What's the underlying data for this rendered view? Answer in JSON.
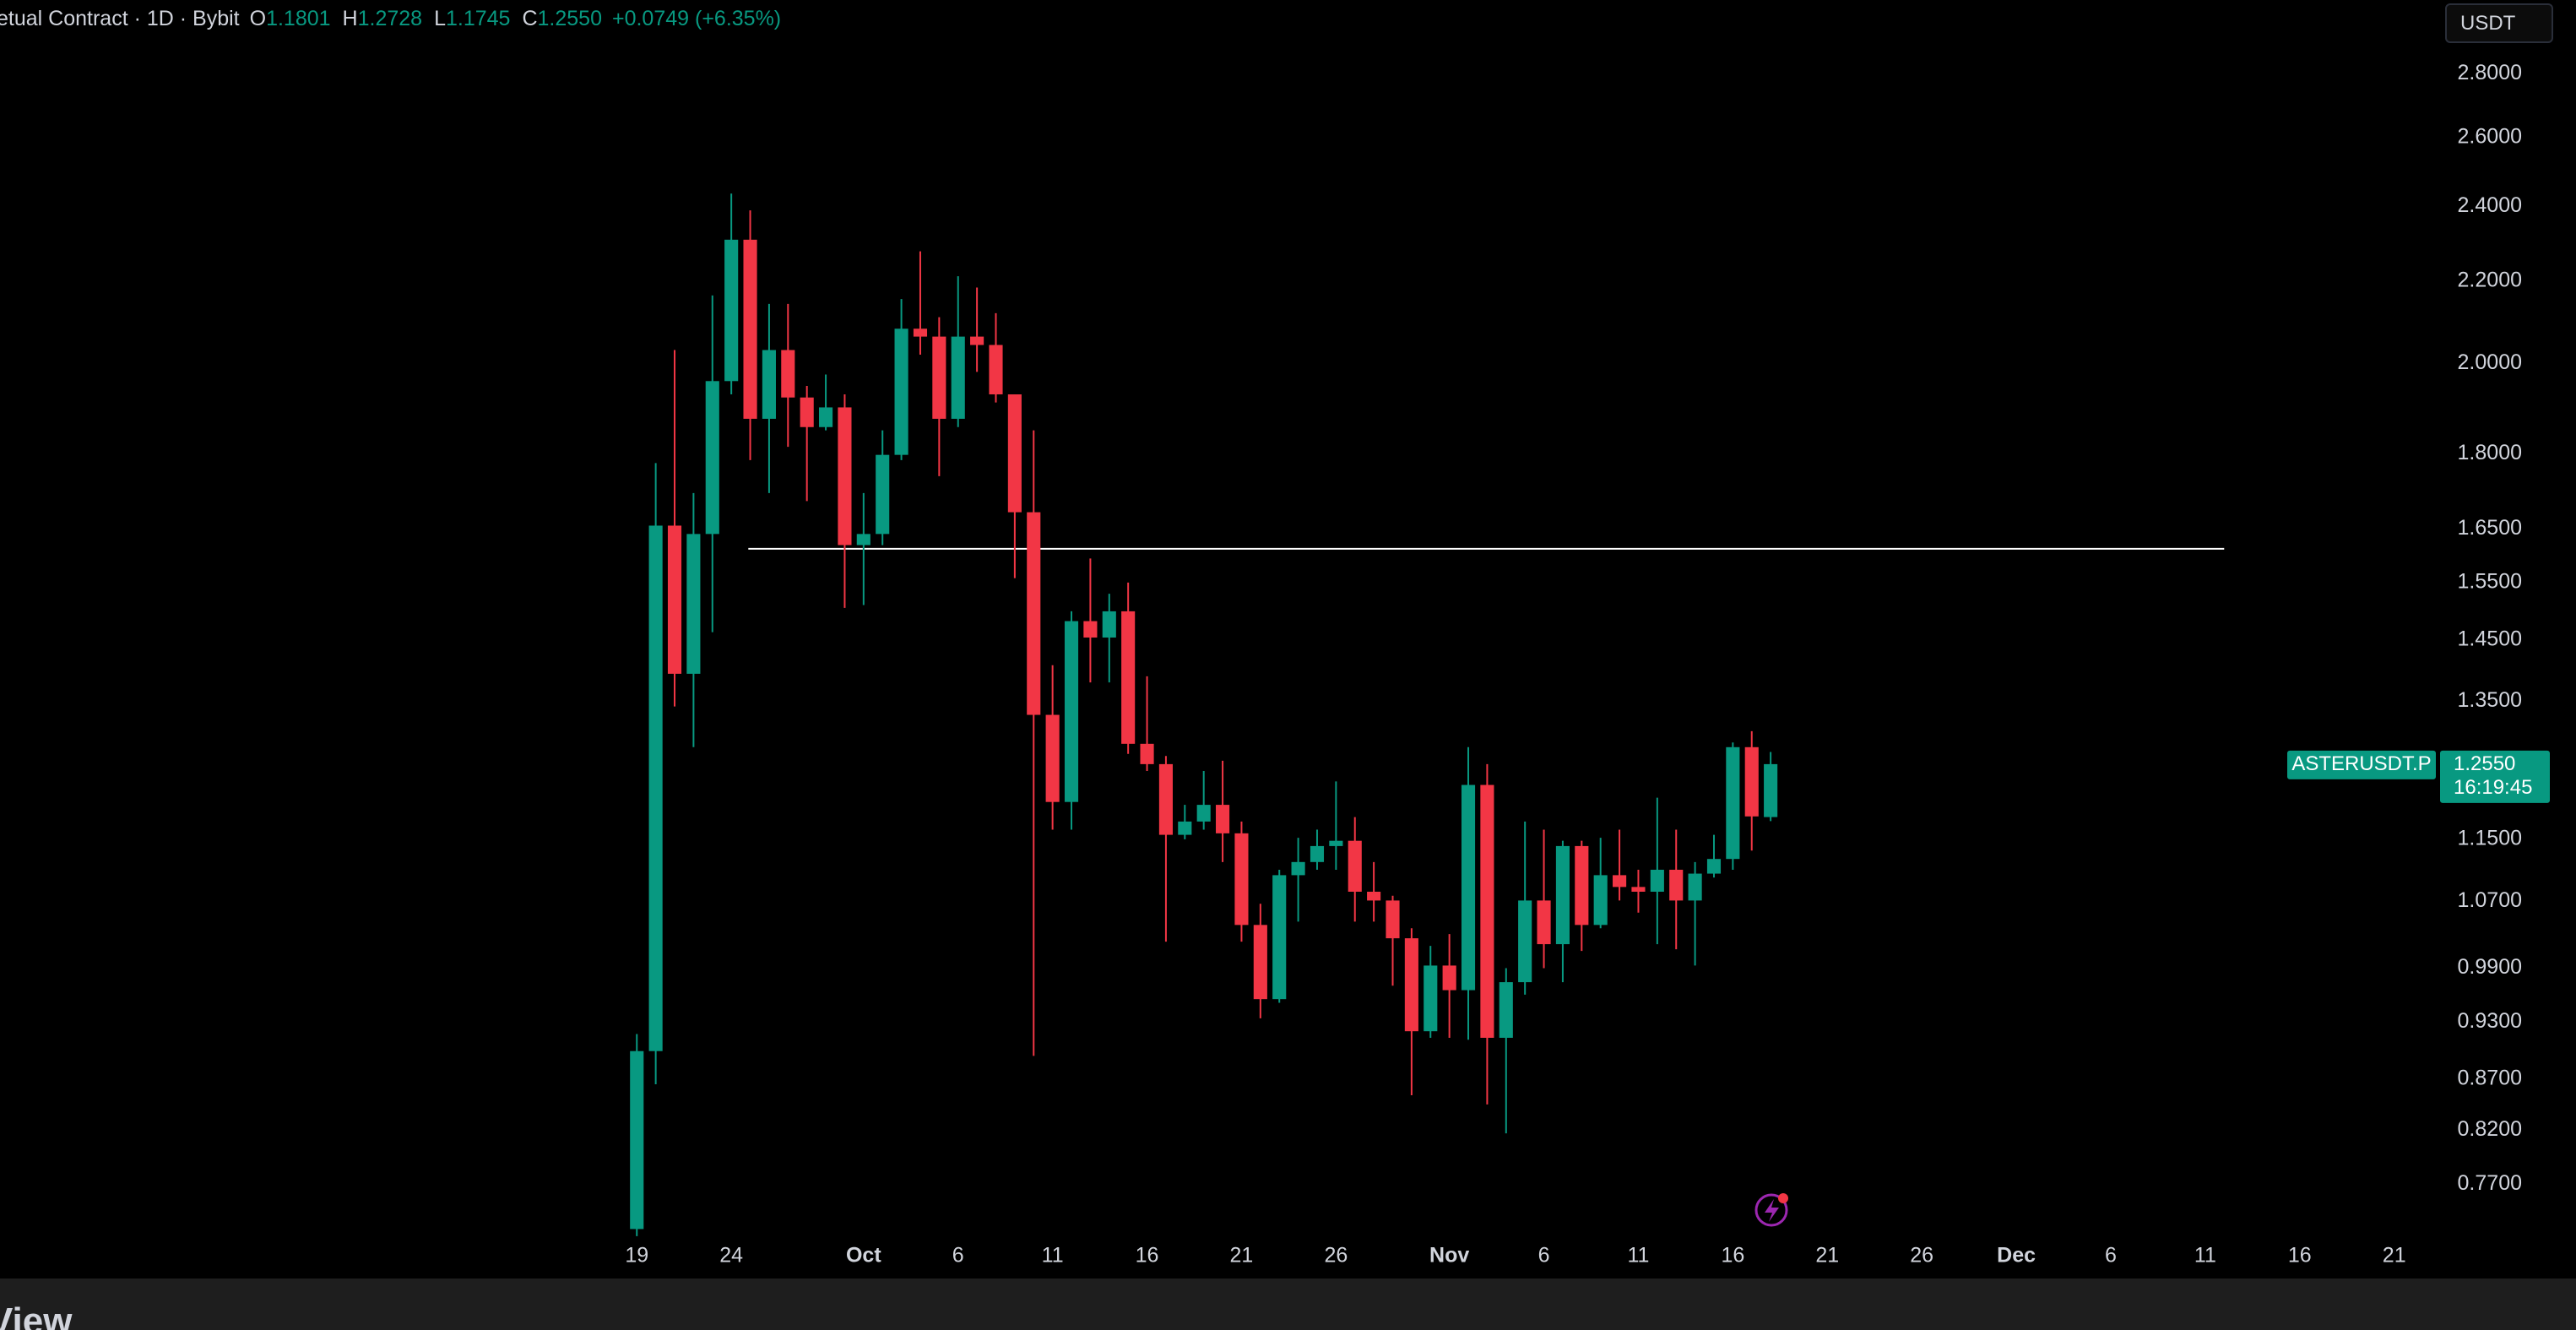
{
  "toolbar": {
    "currency": "USDT"
  },
  "footer": {
    "brand": "View"
  },
  "chart_data": {
    "type": "candlestick",
    "symbol": "ASTERUSDT.P",
    "legend": {
      "title": "etual Contract · 1D · Bybit",
      "items": [
        {
          "key": "O",
          "value": "1.1801"
        },
        {
          "key": "H",
          "value": "1.2728"
        },
        {
          "key": "L",
          "value": "1.1745"
        },
        {
          "key": "C",
          "value": "1.2550"
        }
      ],
      "change": "+0.0749 (+6.35%)"
    },
    "last_price": {
      "label": "1.2550",
      "countdown": "16:19:45"
    },
    "up_color": "#089981",
    "down_color": "#f23645",
    "log_scale": true,
    "grid": false,
    "x": [
      0,
      1,
      2,
      3,
      4,
      5,
      6,
      7,
      8,
      9,
      10,
      11,
      12,
      13,
      14,
      15,
      16,
      17,
      18,
      19,
      20,
      21,
      22,
      23,
      24,
      25,
      26,
      27,
      28,
      29,
      30,
      31,
      32,
      33,
      34,
      35,
      36,
      37,
      38,
      39,
      40,
      41,
      42,
      43,
      44,
      45,
      46,
      47,
      48,
      49,
      50,
      51,
      52,
      53,
      54,
      55,
      56,
      57,
      58,
      59,
      60
    ],
    "open": [
      0.731,
      0.899,
      1.656,
      1.394,
      1.64,
      1.959,
      2.309,
      1.875,
      2.031,
      1.922,
      1.857,
      1.9,
      1.619,
      1.64,
      1.798,
      2.082,
      2.063,
      1.875,
      2.063,
      2.043,
      1.929,
      1.682,
      1.329,
      1.201,
      1.482,
      1.454,
      1.499,
      1.285,
      1.255,
      1.156,
      1.174,
      1.197,
      1.158,
      1.041,
      0.955,
      1.103,
      1.12,
      1.141,
      1.148,
      1.082,
      1.071,
      1.025,
      0.92,
      0.993,
      0.965,
      1.225,
      0.913,
      0.974,
      1.071,
      1.018,
      1.141,
      1.041,
      1.103,
      1.088,
      1.082,
      1.11,
      1.071,
      1.105,
      1.124,
      1.28,
      1.1801
    ],
    "high": [
      0.917,
      1.781,
      2.031,
      1.72,
      2.164,
      2.436,
      2.389,
      2.143,
      2.143,
      1.948,
      1.974,
      1.929,
      1.72,
      1.85,
      2.155,
      2.278,
      2.11,
      2.213,
      2.184,
      2.12,
      1.929,
      1.85,
      1.408,
      1.499,
      1.594,
      1.53,
      1.55,
      1.39,
      1.267,
      1.197,
      1.245,
      1.26,
      1.174,
      1.067,
      1.11,
      1.152,
      1.163,
      1.23,
      1.18,
      1.12,
      1.077,
      1.037,
      1.016,
      1.03,
      1.28,
      1.255,
      0.99,
      1.174,
      1.163,
      1.148,
      1.148,
      1.152,
      1.163,
      1.11,
      1.207,
      1.163,
      1.12,
      1.156,
      1.287,
      1.304,
      1.2728
    ],
    "low": [
      0.725,
      0.865,
      1.342,
      1.28,
      1.463,
      1.929,
      1.787,
      1.72,
      1.815,
      1.704,
      1.85,
      1.505,
      1.51,
      1.619,
      1.787,
      2.02,
      1.754,
      1.857,
      1.98,
      1.911,
      1.558,
      0.894,
      1.163,
      1.163,
      1.38,
      1.38,
      1.27,
      1.245,
      1.021,
      1.15,
      1.163,
      1.12,
      1.021,
      0.934,
      0.951,
      1.045,
      1.11,
      1.11,
      1.045,
      1.045,
      0.97,
      0.854,
      0.913,
      0.913,
      0.911,
      0.845,
      0.817,
      0.96,
      0.99,
      0.974,
      1.01,
      1.037,
      1.071,
      1.056,
      1.018,
      1.012,
      0.993,
      1.1,
      1.11,
      1.135,
      1.1745
    ],
    "close": [
      0.899,
      1.656,
      1.394,
      1.64,
      1.959,
      2.309,
      1.875,
      2.031,
      1.922,
      1.857,
      1.9,
      1.619,
      1.64,
      1.798,
      2.082,
      2.063,
      1.875,
      2.063,
      2.043,
      1.929,
      1.682,
      1.329,
      1.201,
      1.482,
      1.454,
      1.499,
      1.285,
      1.255,
      1.156,
      1.174,
      1.197,
      1.158,
      1.041,
      0.955,
      1.103,
      1.12,
      1.141,
      1.148,
      1.082,
      1.071,
      1.025,
      0.92,
      0.993,
      0.965,
      1.225,
      0.913,
      0.974,
      1.071,
      1.018,
      1.141,
      1.041,
      1.103,
      1.088,
      1.082,
      1.11,
      1.071,
      1.105,
      1.124,
      1.28,
      1.181,
      1.255
    ],
    "ylim": [
      0.7256,
      3.051
    ],
    "yticks": [
      {
        "value": 2.8,
        "label": "2.8000"
      },
      {
        "value": 2.6,
        "label": "2.6000"
      },
      {
        "value": 2.4,
        "label": "2.4000"
      },
      {
        "value": 2.2,
        "label": "2.2000"
      },
      {
        "value": 2.0,
        "label": "2.0000"
      },
      {
        "value": 1.8,
        "label": "1.8000"
      },
      {
        "value": 1.65,
        "label": "1.6500"
      },
      {
        "value": 1.55,
        "label": "1.5500"
      },
      {
        "value": 1.45,
        "label": "1.4500"
      },
      {
        "value": 1.35,
        "label": "1.3500"
      },
      {
        "value": 1.15,
        "label": "1.1500"
      },
      {
        "value": 1.07,
        "label": "1.0700"
      },
      {
        "value": 0.99,
        "label": "0.9900"
      },
      {
        "value": 0.93,
        "label": "0.9300"
      },
      {
        "value": 0.87,
        "label": "0.8700"
      },
      {
        "value": 0.82,
        "label": "0.8200"
      },
      {
        "value": 0.77,
        "label": "0.7700"
      }
    ],
    "xlim": [
      -33.7,
      94.8
    ],
    "xticks": [
      {
        "value": 0,
        "label": "19"
      },
      {
        "value": 5,
        "label": "24"
      },
      {
        "value": 12,
        "label": "Oct"
      },
      {
        "value": 17,
        "label": "6"
      },
      {
        "value": 22,
        "label": "11"
      },
      {
        "value": 27,
        "label": "16"
      },
      {
        "value": 32,
        "label": "21"
      },
      {
        "value": 37,
        "label": "26"
      },
      {
        "value": 43,
        "label": "Nov"
      },
      {
        "value": 48,
        "label": "6"
      },
      {
        "value": 53,
        "label": "11"
      },
      {
        "value": 58,
        "label": "16"
      },
      {
        "value": 63,
        "label": "21"
      },
      {
        "value": 68,
        "label": "26"
      },
      {
        "value": 73,
        "label": "Dec"
      },
      {
        "value": 78,
        "label": "6"
      },
      {
        "value": 83,
        "label": "11"
      },
      {
        "value": 88,
        "label": "16"
      },
      {
        "value": 93,
        "label": "21"
      }
    ],
    "hline": {
      "value": 1.612,
      "x": [
        5.9,
        84
      ],
      "color": "#ffffff"
    }
  }
}
